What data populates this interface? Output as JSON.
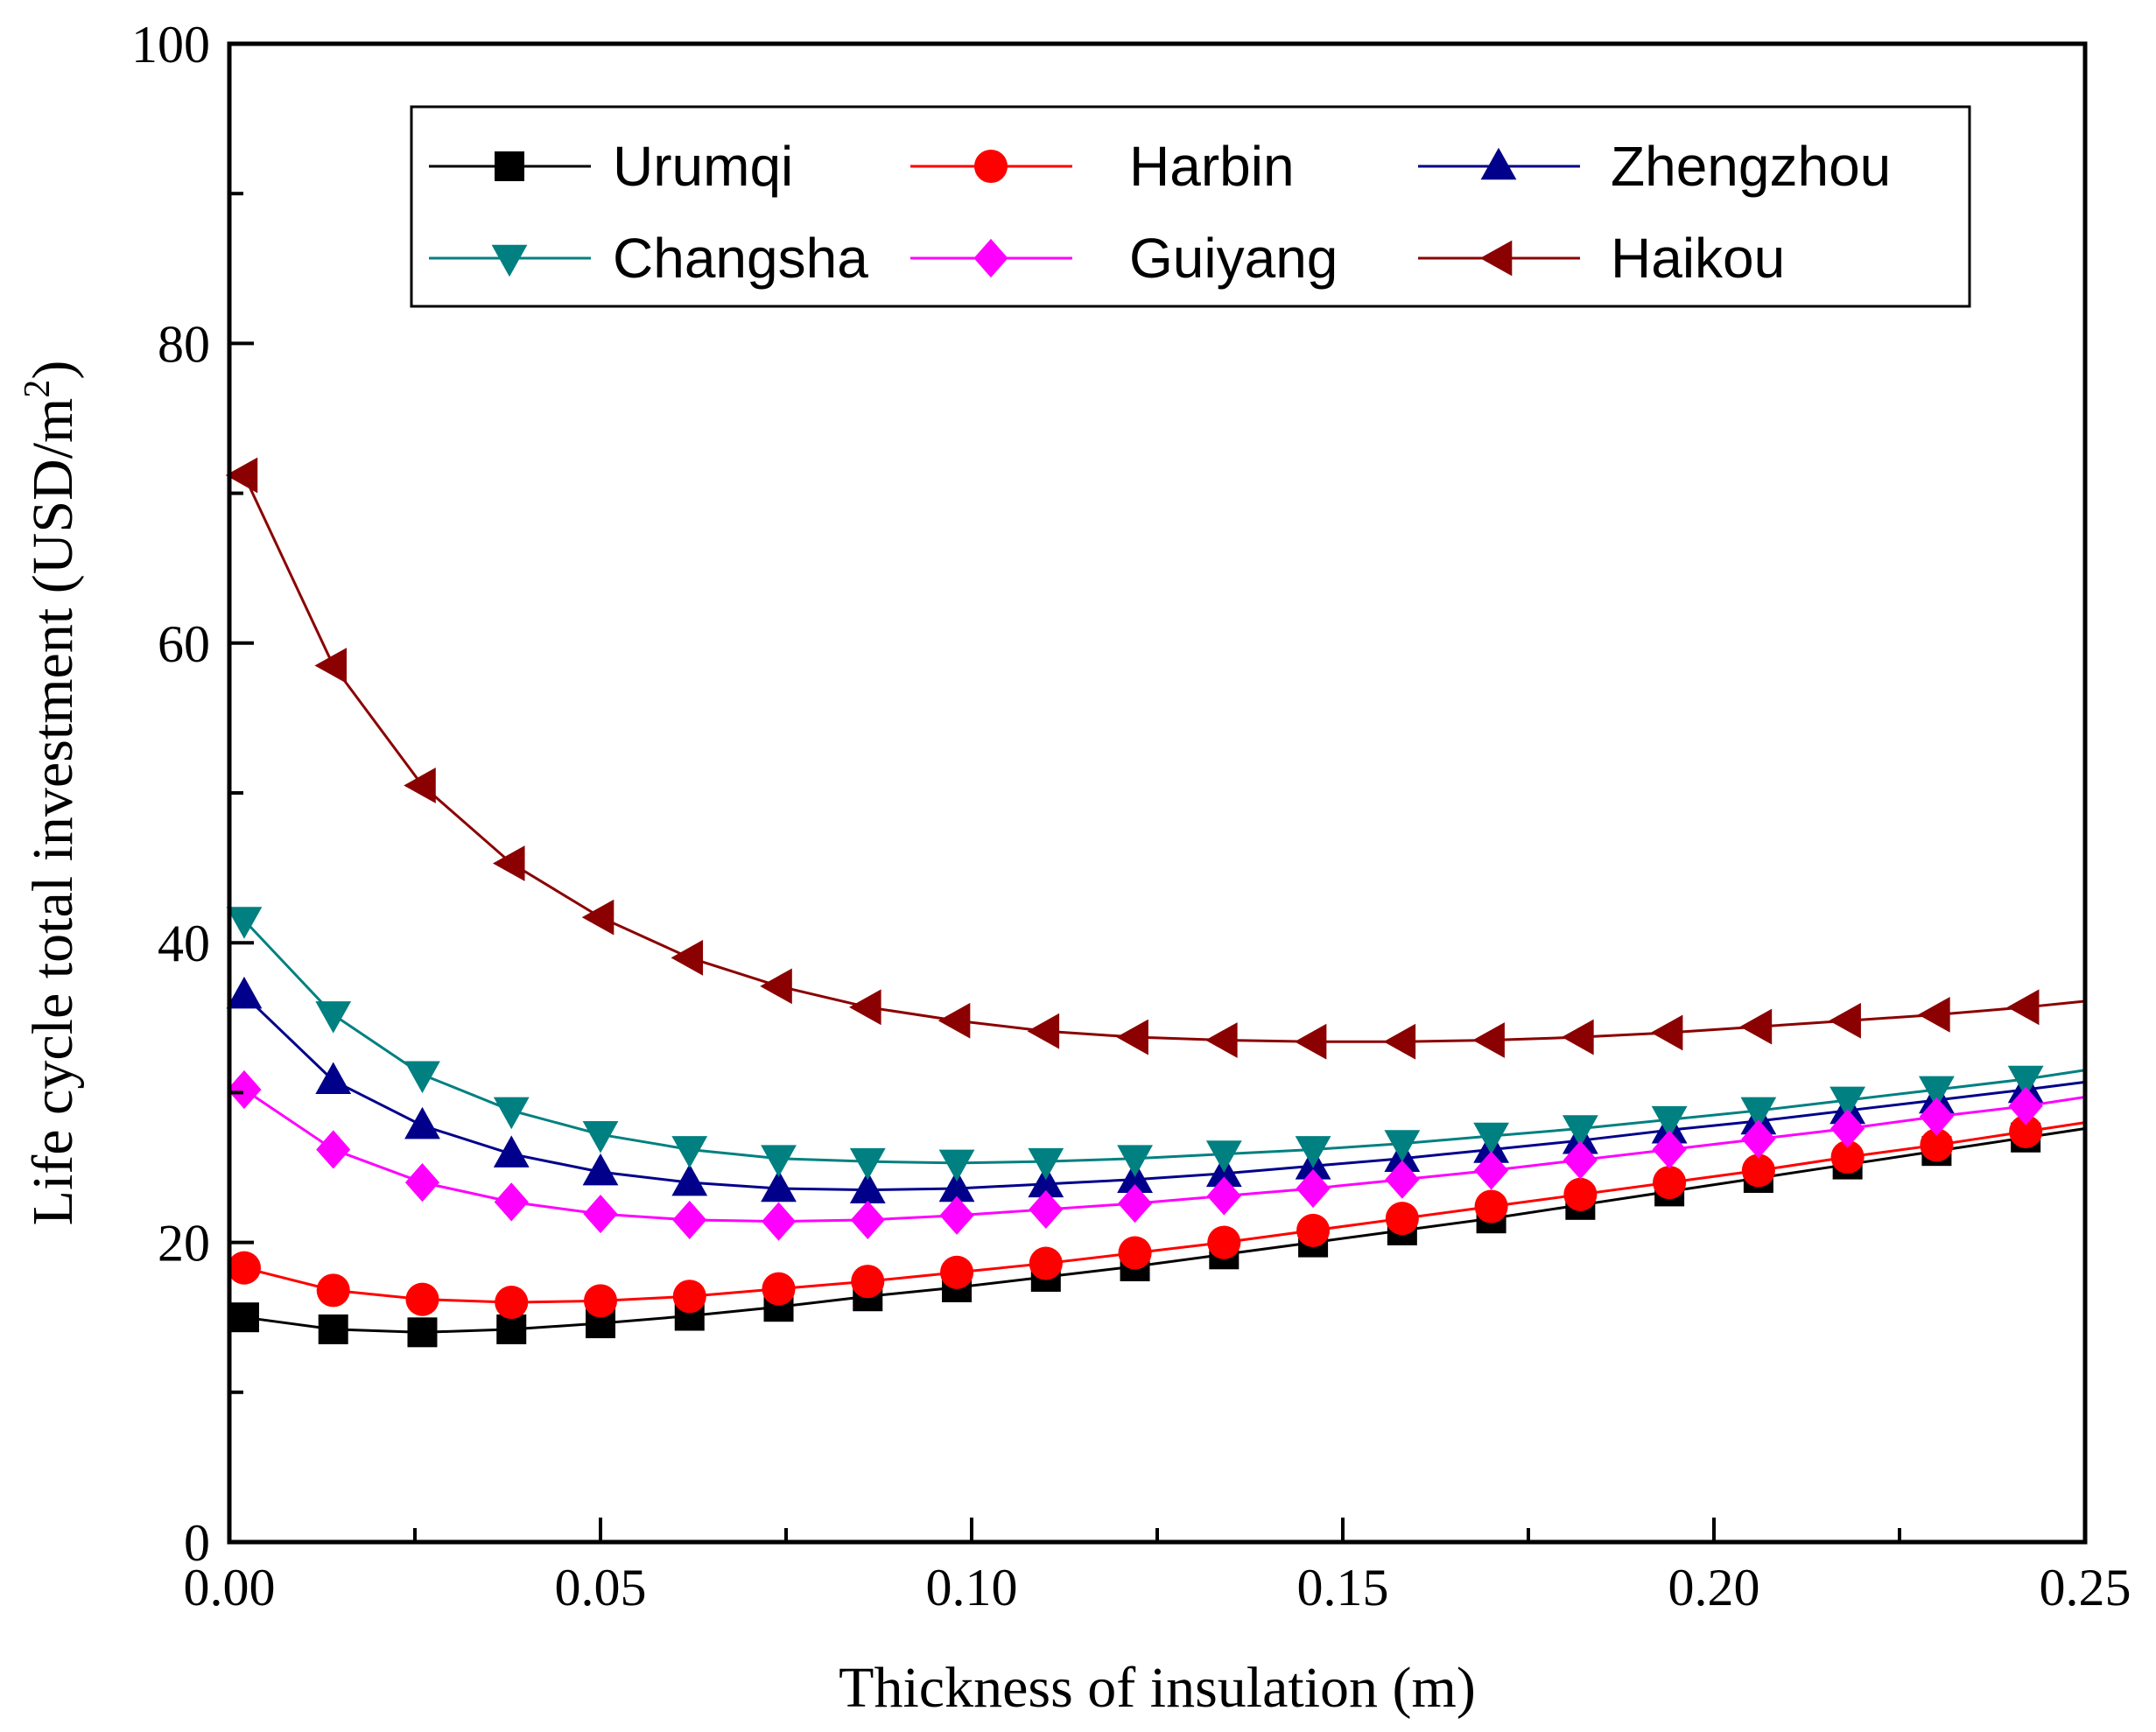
{
  "chart_data": {
    "type": "line",
    "title": "",
    "xlabel": "Thickness of insulation (m)",
    "ylabel_main": "Life cycle total investment  (USD/m",
    "ylabel_sup": "2",
    "ylabel_close": ")",
    "xlim": [
      0,
      0.25
    ],
    "ylim": [
      0,
      100
    ],
    "xticks": [
      {
        "value": 0.0,
        "label": "0.00"
      },
      {
        "value": 0.05,
        "label": "0.05"
      },
      {
        "value": 0.1,
        "label": "0.10"
      },
      {
        "value": 0.15,
        "label": "0.15"
      },
      {
        "value": 0.2,
        "label": "0.20"
      },
      {
        "value": 0.25,
        "label": "0.25"
      }
    ],
    "yticks": [
      {
        "value": 0,
        "label": "0"
      },
      {
        "value": 20,
        "label": "20"
      },
      {
        "value": 40,
        "label": "40"
      },
      {
        "value": 60,
        "label": "60"
      },
      {
        "value": 80,
        "label": "80"
      },
      {
        "value": 100,
        "label": "100"
      }
    ],
    "x_minor_step": 0.025,
    "y_minor_step": 10,
    "grid": false,
    "legend_position": "top-right",
    "x": [
      0.002,
      0.014,
      0.026,
      0.038,
      0.05,
      0.062,
      0.074,
      0.086,
      0.098,
      0.11,
      0.122,
      0.134,
      0.146,
      0.158,
      0.17,
      0.182,
      0.194,
      0.206,
      0.218,
      0.23,
      0.242
    ],
    "curve_end_x": 0.25,
    "series": [
      {
        "name": "Urumqi",
        "color": "#000000",
        "marker": "square",
        "values": [
          15.0,
          14.2,
          14.0,
          14.2,
          14.6,
          15.1,
          15.7,
          16.4,
          17.0,
          17.7,
          18.4,
          19.2,
          20.0,
          20.8,
          21.6,
          22.5,
          23.4,
          24.3,
          25.2,
          26.1,
          27.0
        ],
        "end_value": 27.6
      },
      {
        "name": "Harbin",
        "color": "#ff0000",
        "marker": "circle",
        "values": [
          18.3,
          16.8,
          16.2,
          16.0,
          16.1,
          16.4,
          16.9,
          17.4,
          18.0,
          18.6,
          19.3,
          20.0,
          20.8,
          21.6,
          22.4,
          23.2,
          24.0,
          24.8,
          25.7,
          26.5,
          27.4
        ],
        "end_value": 28.0
      },
      {
        "name": "Zhengzhou",
        "color": "#00008b",
        "marker": "triangle-up",
        "values": [
          36.5,
          30.8,
          27.8,
          25.9,
          24.7,
          24.0,
          23.6,
          23.5,
          23.6,
          23.9,
          24.2,
          24.6,
          25.1,
          25.6,
          26.2,
          26.8,
          27.5,
          28.1,
          28.8,
          29.5,
          30.2
        ],
        "end_value": 30.7
      },
      {
        "name": "Changsha",
        "color": "#008080",
        "marker": "triangle-down",
        "values": [
          41.5,
          35.2,
          31.2,
          28.8,
          27.2,
          26.2,
          25.6,
          25.4,
          25.3,
          25.4,
          25.6,
          25.9,
          26.2,
          26.6,
          27.1,
          27.6,
          28.2,
          28.8,
          29.5,
          30.2,
          30.9
        ],
        "end_value": 31.5
      },
      {
        "name": "Guiyang",
        "color": "#ff00ff",
        "marker": "diamond",
        "values": [
          30.2,
          26.2,
          24.0,
          22.7,
          21.9,
          21.5,
          21.4,
          21.5,
          21.8,
          22.2,
          22.6,
          23.1,
          23.6,
          24.2,
          24.8,
          25.5,
          26.2,
          26.9,
          27.6,
          28.4,
          29.1
        ],
        "end_value": 29.7
      },
      {
        "name": "Haikou",
        "color": "#8b0000",
        "marker": "triangle-left",
        "values": [
          71.2,
          58.5,
          50.5,
          45.3,
          41.7,
          39.0,
          37.1,
          35.7,
          34.8,
          34.1,
          33.7,
          33.5,
          33.4,
          33.4,
          33.5,
          33.7,
          34.0,
          34.4,
          34.8,
          35.2,
          35.7
        ],
        "end_value": 36.1
      }
    ]
  }
}
